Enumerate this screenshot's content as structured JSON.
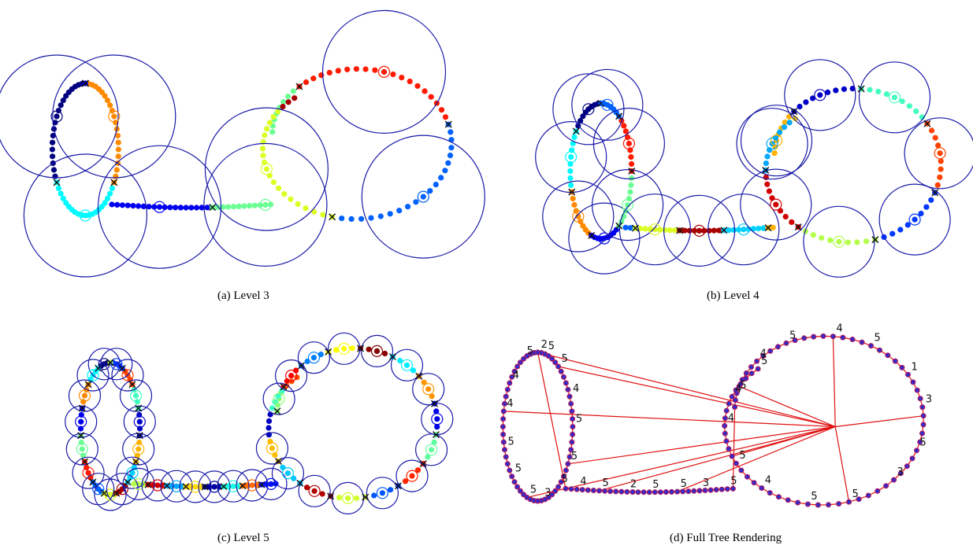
{
  "panels": [
    {
      "id": "a",
      "caption": "(a)  Level 3"
    },
    {
      "id": "b",
      "caption": "(b)  Level 4"
    },
    {
      "id": "c",
      "caption": "(c)  Level 5"
    },
    {
      "id": "d",
      "caption": "(d)  Full Tree Rendering"
    }
  ],
  "tree_labels": [
    "2",
    "5",
    "4",
    "4",
    "5",
    "5",
    "5",
    "3",
    "5",
    "5",
    "5",
    "4",
    "5",
    "5",
    "4",
    "5",
    "2",
    "5",
    "5",
    "3",
    "5",
    "5",
    "4",
    "5",
    "4",
    "5",
    "1",
    "3",
    "5",
    "3",
    "5",
    "5",
    "4",
    "5",
    "4",
    "4",
    "5"
  ],
  "colors": {
    "circle": "#1a1aa8",
    "edge": "#e01010",
    "node": "#2b2bd6"
  }
}
